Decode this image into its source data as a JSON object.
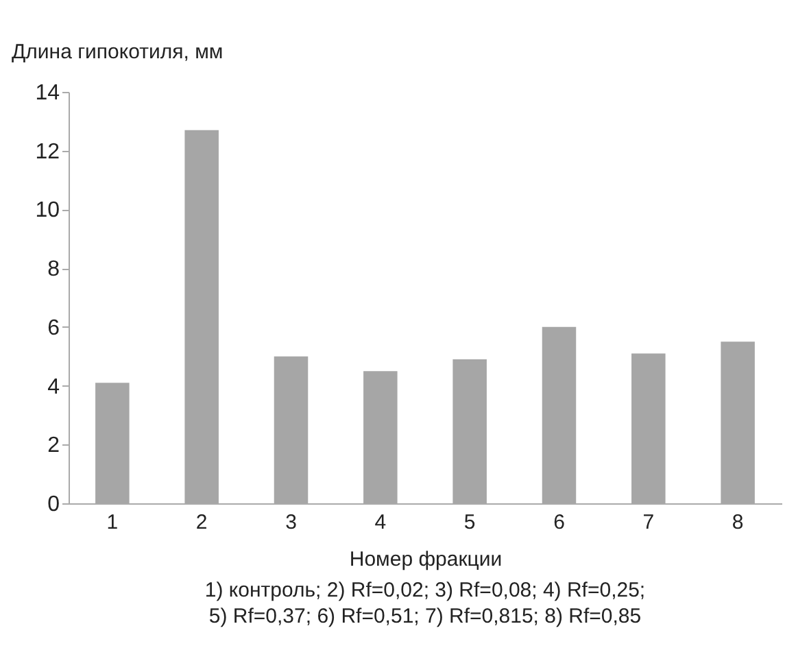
{
  "chart_data": {
    "type": "bar",
    "ylabel": "Длина гипокотиля, мм",
    "xlabel": "Номер фракции",
    "annotations": [
      "1) контроль; 2) Rf=0,02; 3) Rf=0,08; 4) Rf=0,25; 5) Rf=0,37; 6) Rf=0,51; 7) Rf=0,815; 8) Rf=0,85"
    ],
    "categories": [
      "1",
      "2",
      "3",
      "4",
      "5",
      "6",
      "7",
      "8"
    ],
    "values": [
      4.1,
      12.7,
      5.0,
      4.5,
      4.9,
      6.0,
      5.1,
      5.5
    ],
    "color": "#a6a6a6",
    "ylim": [
      0,
      14
    ],
    "yticks": [
      0,
      2,
      4,
      6,
      8,
      10,
      12,
      14
    ],
    "grid": false
  }
}
